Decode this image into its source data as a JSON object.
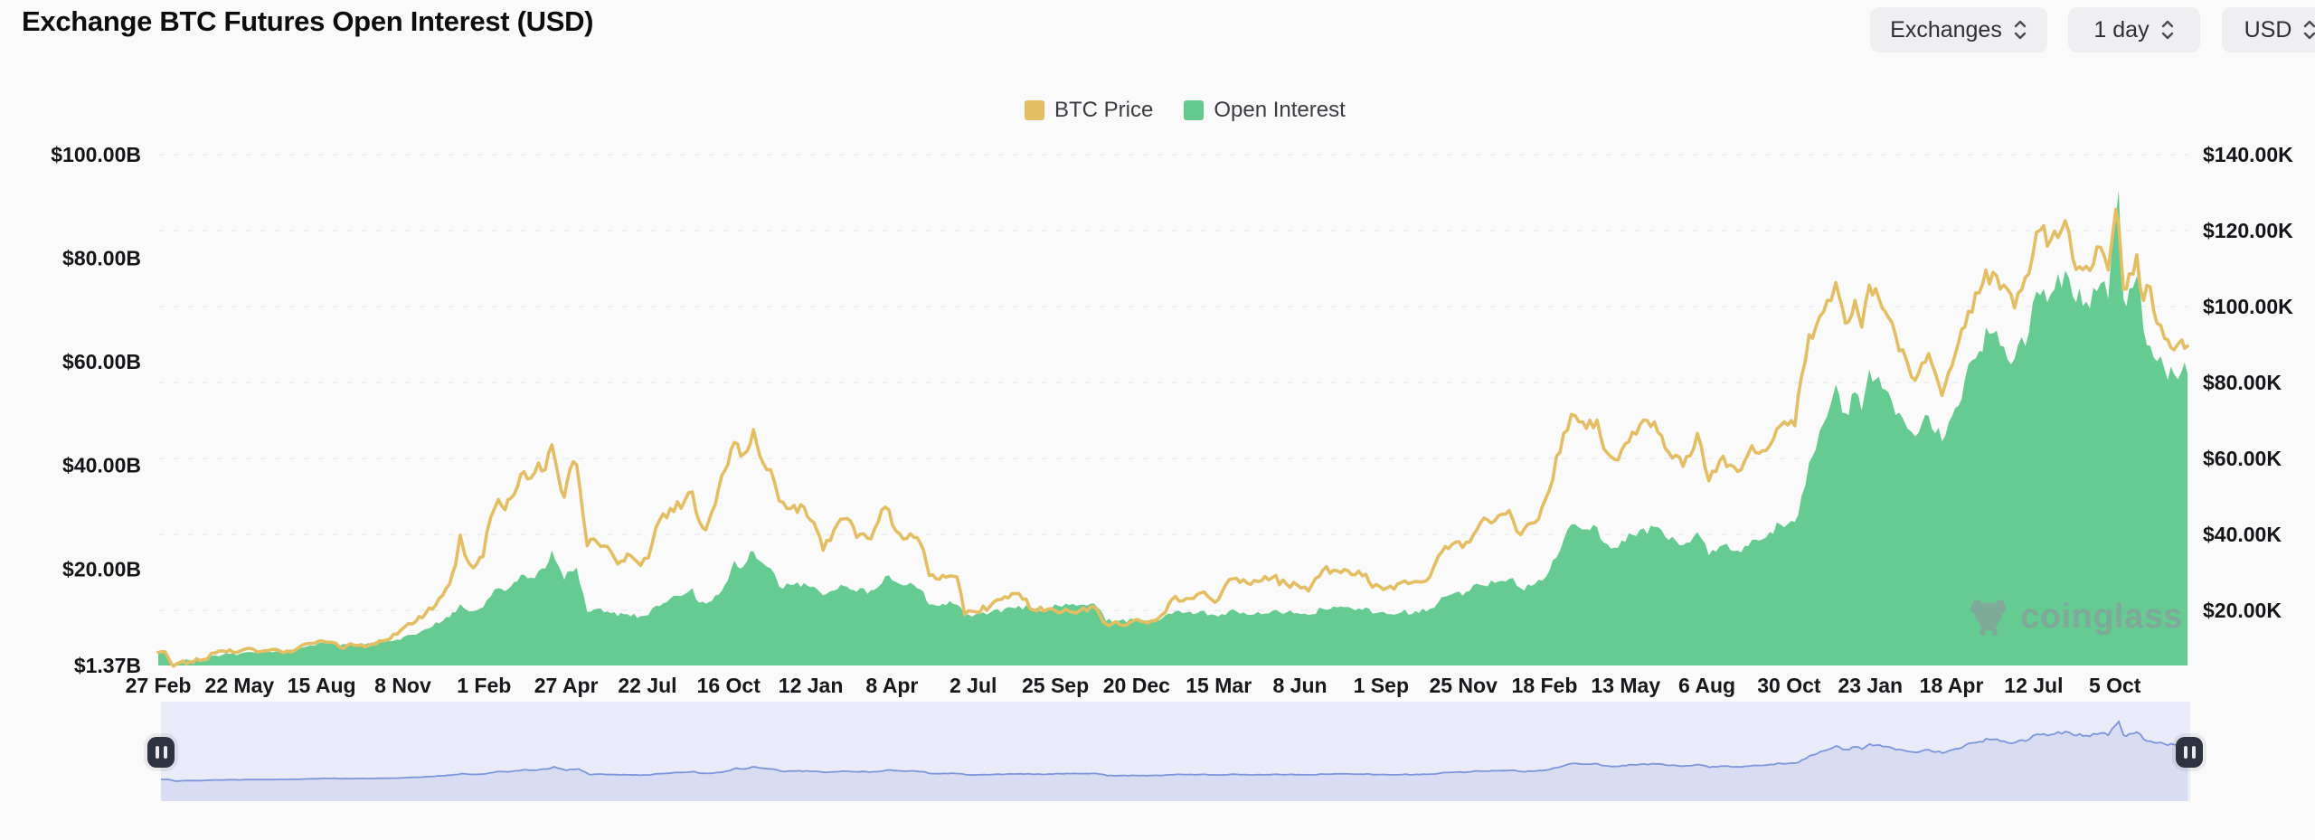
{
  "header": {
    "title": "Exchange BTC Futures Open Interest (USD)"
  },
  "controls": {
    "exchanges_label": "Exchanges",
    "interval_label": "1 day",
    "currency_label": "USD"
  },
  "legend": {
    "items": [
      {
        "label": "BTC Price",
        "color": "#E5BE63"
      },
      {
        "label": "Open Interest",
        "color": "#63C98D"
      }
    ]
  },
  "watermark": {
    "text": "coinglass",
    "icon": "bull-mascot-icon"
  },
  "chart_data": {
    "type": "area",
    "subtype": "dual-axis: green area (Open Interest, left axis, $B) + gold line (BTC Price, right axis, $K)",
    "title": "Exchange BTC Futures Open Interest (USD)",
    "grid": "horizontal dashed lines at right-axis ticks",
    "legend_position": "top-center",
    "colors": {
      "price_line": "#E4BE63",
      "oi_area": "#66CB90",
      "grid": "#e7e7ea",
      "nav_band": "#e9ebf9",
      "nav_line": "#7c96db",
      "nav_fill": "#d8ddf4",
      "nav_handle": "#2e3342"
    },
    "y_axis_left": {
      "side": "left",
      "unit": "billion USD",
      "min": 1.37,
      "max": 100,
      "ticks": [
        {
          "value": 100,
          "label": "$100.00B"
        },
        {
          "value": 80,
          "label": "$80.00B"
        },
        {
          "value": 60,
          "label": "$60.00B"
        },
        {
          "value": 40,
          "label": "$40.00B"
        },
        {
          "value": 20,
          "label": "$20.00B"
        },
        {
          "value": 1.37,
          "label": "$1.37B"
        }
      ]
    },
    "y_axis_right": {
      "side": "right",
      "unit": "thousand USD",
      "min": 0,
      "max": 140,
      "ticks": [
        {
          "value": 140,
          "label": "$140.00K"
        },
        {
          "value": 120,
          "label": "$120.00K"
        },
        {
          "value": 100,
          "label": "$100.00K"
        },
        {
          "value": 80,
          "label": "$80.00K"
        },
        {
          "value": 60,
          "label": "$60.00K"
        },
        {
          "value": 40,
          "label": "$40.00K"
        },
        {
          "value": 20,
          "label": "$20.00K"
        }
      ]
    },
    "x_ticks": {
      "days": [
        0,
        85,
        171,
        256,
        341,
        427,
        512,
        597,
        683,
        768,
        853,
        939,
        1024,
        1110,
        1195,
        1280,
        1366,
        1451,
        1536,
        1621,
        1707,
        1792,
        1877,
        1963,
        2048
      ],
      "labels": [
        "27 Feb",
        "22 May",
        "15 Aug",
        "8 Nov",
        "1 Feb",
        "27 Apr",
        "22 Jul",
        "16 Oct",
        "12 Jan",
        "8 Apr",
        "2 Jul",
        "25 Sep",
        "20 Dec",
        "15 Mar",
        "8 Jun",
        "1 Sep",
        "25 Nov",
        "18 Feb",
        "13 May",
        "6 Aug",
        "30 Oct",
        "23 Jan",
        "18 Apr",
        "12 Jul",
        "5 Oct"
      ]
    },
    "series": [
      {
        "name": "BTC Price",
        "axis": "right",
        "type": "line",
        "color": "#E4BE63"
      },
      {
        "name": "Open Interest",
        "axis": "left",
        "type": "area",
        "color": "#66CB90"
      }
    ],
    "points_format": [
      "day_offset_from_first_tick",
      "btc_price_thousand_usd",
      "open_interest_billion_usd"
    ],
    "points": [
      [
        0,
        8.9,
        4.1
      ],
      [
        7,
        9.1,
        4.3
      ],
      [
        14,
        5.8,
        1.8
      ],
      [
        16,
        5.3,
        1.37
      ],
      [
        22,
        6.2,
        2.1
      ],
      [
        33,
        6.5,
        2.4
      ],
      [
        47,
        7.0,
        2.7
      ],
      [
        60,
        8.8,
        3.3
      ],
      [
        75,
        9.6,
        3.6
      ],
      [
        85,
        9.2,
        3.6
      ],
      [
        100,
        9.7,
        3.9
      ],
      [
        115,
        9.4,
        4.0
      ],
      [
        128,
        9.2,
        4.1
      ],
      [
        142,
        9.3,
        4.3
      ],
      [
        155,
        11.2,
        5.0
      ],
      [
        168,
        11.9,
        5.7
      ],
      [
        182,
        11.6,
        5.9
      ],
      [
        190,
        10.3,
        5.2
      ],
      [
        205,
        10.8,
        5.5
      ],
      [
        220,
        10.7,
        5.7
      ],
      [
        235,
        11.9,
        6.0
      ],
      [
        250,
        13.7,
        6.4
      ],
      [
        257,
        15.4,
        6.9
      ],
      [
        266,
        16.4,
        7.3
      ],
      [
        280,
        19.2,
        8.4
      ],
      [
        294,
        23.1,
        9.5
      ],
      [
        305,
        26.9,
        10.7
      ],
      [
        311,
        31.8,
        11.6
      ],
      [
        316,
        39.8,
        13.2
      ],
      [
        321,
        34.5,
        12.3
      ],
      [
        330,
        31.2,
        11.9
      ],
      [
        340,
        34.2,
        12.6
      ],
      [
        348,
        44.5,
        14.7
      ],
      [
        356,
        49.2,
        16.3
      ],
      [
        363,
        46.5,
        15.7
      ],
      [
        369,
        49.5,
        16.6
      ],
      [
        376,
        52.5,
        17.6
      ],
      [
        383,
        56.5,
        18.9
      ],
      [
        390,
        54.8,
        18.3
      ],
      [
        398,
        58.8,
        19.6
      ],
      [
        405,
        57.0,
        20.1
      ],
      [
        412,
        63.6,
        23.6
      ],
      [
        419,
        55.0,
        20.6
      ],
      [
        425,
        49.8,
        17.9
      ],
      [
        431,
        57.2,
        19.6
      ],
      [
        438,
        58.3,
        20.3
      ],
      [
        445,
        44.5,
        15.2
      ],
      [
        449,
        37.0,
        11.7
      ],
      [
        456,
        38.8,
        12.2
      ],
      [
        470,
        36.8,
        11.8
      ],
      [
        481,
        32.2,
        10.9
      ],
      [
        491,
        34.8,
        11.3
      ],
      [
        505,
        31.8,
        10.9
      ],
      [
        513,
        33.8,
        11.1
      ],
      [
        521,
        41.8,
        12.9
      ],
      [
        536,
        46.8,
        14.3
      ],
      [
        551,
        48.8,
        15.1
      ],
      [
        559,
        51.2,
        16.3
      ],
      [
        563,
        45.8,
        14.1
      ],
      [
        573,
        41.2,
        13.3
      ],
      [
        583,
        47.8,
        14.9
      ],
      [
        593,
        56.8,
        16.9
      ],
      [
        603,
        64.2,
        21.6
      ],
      [
        613,
        61.2,
        20.6
      ],
      [
        623,
        67.6,
        23.4
      ],
      [
        633,
        58.8,
        21.1
      ],
      [
        645,
        53.8,
        19.1
      ],
      [
        650,
        48.8,
        16.6
      ],
      [
        662,
        46.8,
        16.9
      ],
      [
        676,
        47.2,
        17.3
      ],
      [
        686,
        43.2,
        16.6
      ],
      [
        696,
        35.8,
        14.9
      ],
      [
        711,
        42.8,
        16.1
      ],
      [
        721,
        44.2,
        16.6
      ],
      [
        731,
        39.2,
        15.6
      ],
      [
        746,
        38.8,
        15.9
      ],
      [
        761,
        47.2,
        18.6
      ],
      [
        776,
        40.2,
        17.1
      ],
      [
        791,
        39.2,
        16.9
      ],
      [
        801,
        35.8,
        15.6
      ],
      [
        807,
        29.2,
        13.1
      ],
      [
        821,
        29.2,
        13.3
      ],
      [
        836,
        28.8,
        13.1
      ],
      [
        844,
        18.9,
        11.1
      ],
      [
        856,
        19.6,
        11.3
      ],
      [
        871,
        21.2,
        11.6
      ],
      [
        886,
        23.6,
        12.3
      ],
      [
        901,
        24.4,
        12.9
      ],
      [
        916,
        20.1,
        12.1
      ],
      [
        931,
        20.3,
        12.5
      ],
      [
        946,
        19.6,
        12.7
      ],
      [
        961,
        19.3,
        12.9
      ],
      [
        976,
        20.9,
        13.3
      ],
      [
        986,
        18.6,
        12.1
      ],
      [
        992,
        16.4,
        9.9
      ],
      [
        1006,
        16.3,
        10.0
      ],
      [
        1021,
        17.3,
        10.3
      ],
      [
        1036,
        16.7,
        10.1
      ],
      [
        1051,
        18.9,
        10.5
      ],
      [
        1061,
        22.9,
        11.3
      ],
      [
        1076,
        23.1,
        11.6
      ],
      [
        1091,
        24.6,
        11.9
      ],
      [
        1106,
        22.1,
        11.1
      ],
      [
        1113,
        24.6,
        11.3
      ],
      [
        1121,
        28.1,
        11.9
      ],
      [
        1136,
        28.1,
        11.6
      ],
      [
        1151,
        27.6,
        11.7
      ],
      [
        1166,
        28.6,
        11.9
      ],
      [
        1181,
        26.9,
        11.6
      ],
      [
        1196,
        25.9,
        11.3
      ],
      [
        1204,
        25.1,
        11.1
      ],
      [
        1219,
        30.6,
        12.3
      ],
      [
        1234,
        30.4,
        12.6
      ],
      [
        1249,
        29.4,
        12.4
      ],
      [
        1264,
        29.5,
        12.6
      ],
      [
        1271,
        26.1,
        11.4
      ],
      [
        1286,
        25.9,
        11.3
      ],
      [
        1301,
        27.3,
        11.6
      ],
      [
        1316,
        27.6,
        11.9
      ],
      [
        1331,
        28.8,
        12.3
      ],
      [
        1340,
        34.3,
        13.6
      ],
      [
        1354,
        37.3,
        15.1
      ],
      [
        1369,
        37.9,
        15.6
      ],
      [
        1384,
        43.1,
        16.9
      ],
      [
        1399,
        43.6,
        17.3
      ],
      [
        1414,
        46.3,
        18.1
      ],
      [
        1426,
        39.9,
        16.3
      ],
      [
        1441,
        43.1,
        17.1
      ],
      [
        1456,
        51.6,
        19.6
      ],
      [
        1471,
        66.6,
        25.6
      ],
      [
        1479,
        71.6,
        28.6
      ],
      [
        1491,
        69.6,
        27.6
      ],
      [
        1506,
        70.1,
        28.1
      ],
      [
        1513,
        62.6,
        25.1
      ],
      [
        1528,
        59.6,
        24.1
      ],
      [
        1543,
        66.9,
        26.6
      ],
      [
        1551,
        68.9,
        27.6
      ],
      [
        1566,
        69.6,
        28.1
      ],
      [
        1581,
        61.6,
        25.6
      ],
      [
        1596,
        57.9,
        24.6
      ],
      [
        1611,
        66.6,
        27.1
      ],
      [
        1623,
        54.1,
        22.6
      ],
      [
        1638,
        60.6,
        24.6
      ],
      [
        1653,
        56.6,
        23.6
      ],
      [
        1668,
        63.3,
        25.6
      ],
      [
        1683,
        62.1,
        26.1
      ],
      [
        1698,
        68.6,
        28.6
      ],
      [
        1713,
        68.6,
        29.1
      ],
      [
        1720,
        81.6,
        34.1
      ],
      [
        1728,
        92.6,
        40.6
      ],
      [
        1735,
        94.6,
        43.1
      ],
      [
        1743,
        98.6,
        48.1
      ],
      [
        1751,
        101.6,
        52.1
      ],
      [
        1756,
        106.3,
        55.6
      ],
      [
        1766,
        95.6,
        50.1
      ],
      [
        1776,
        101.6,
        54.1
      ],
      [
        1783,
        94.6,
        50.6
      ],
      [
        1791,
        105.6,
        58.6
      ],
      [
        1801,
        102.1,
        57.1
      ],
      [
        1811,
        97.1,
        54.1
      ],
      [
        1826,
        88.6,
        49.1
      ],
      [
        1831,
        85.1,
        47.1
      ],
      [
        1839,
        80.6,
        45.6
      ],
      [
        1853,
        87.6,
        49.6
      ],
      [
        1867,
        76.6,
        44.6
      ],
      [
        1881,
        87.6,
        51.1
      ],
      [
        1891,
        94.6,
        56.6
      ],
      [
        1906,
        103.6,
        62.1
      ],
      [
        1913,
        109.6,
        66.6
      ],
      [
        1928,
        104.6,
        63.1
      ],
      [
        1943,
        99.6,
        60.6
      ],
      [
        1958,
        108.6,
        65.6
      ],
      [
        1966,
        119.6,
        73.6
      ],
      [
        1981,
        117.6,
        73.1
      ],
      [
        1996,
        122.6,
        77.6
      ],
      [
        2004,
        112.6,
        72.6
      ],
      [
        2018,
        110.6,
        71.6
      ],
      [
        2033,
        115.6,
        75.1
      ],
      [
        2041,
        109.6,
        72.1
      ],
      [
        2049,
        125.6,
        88.1
      ],
      [
        2052,
        121.6,
        93.1
      ],
      [
        2057,
        104.6,
        72.1
      ],
      [
        2063,
        108.6,
        74.1
      ],
      [
        2071,
        113.6,
        76.6
      ],
      [
        2078,
        101.6,
        66.1
      ],
      [
        2085,
        105.1,
        63.1
      ],
      [
        2092,
        95.6,
        60.1
      ],
      [
        2100,
        91.6,
        58.6
      ],
      [
        2110,
        88.6,
        57.6
      ],
      [
        2118,
        91.2,
        58.2
      ],
      [
        2124,
        89.6,
        57.8
      ]
    ],
    "navigator": {
      "shows": "Open Interest",
      "range_selected": "full"
    }
  }
}
